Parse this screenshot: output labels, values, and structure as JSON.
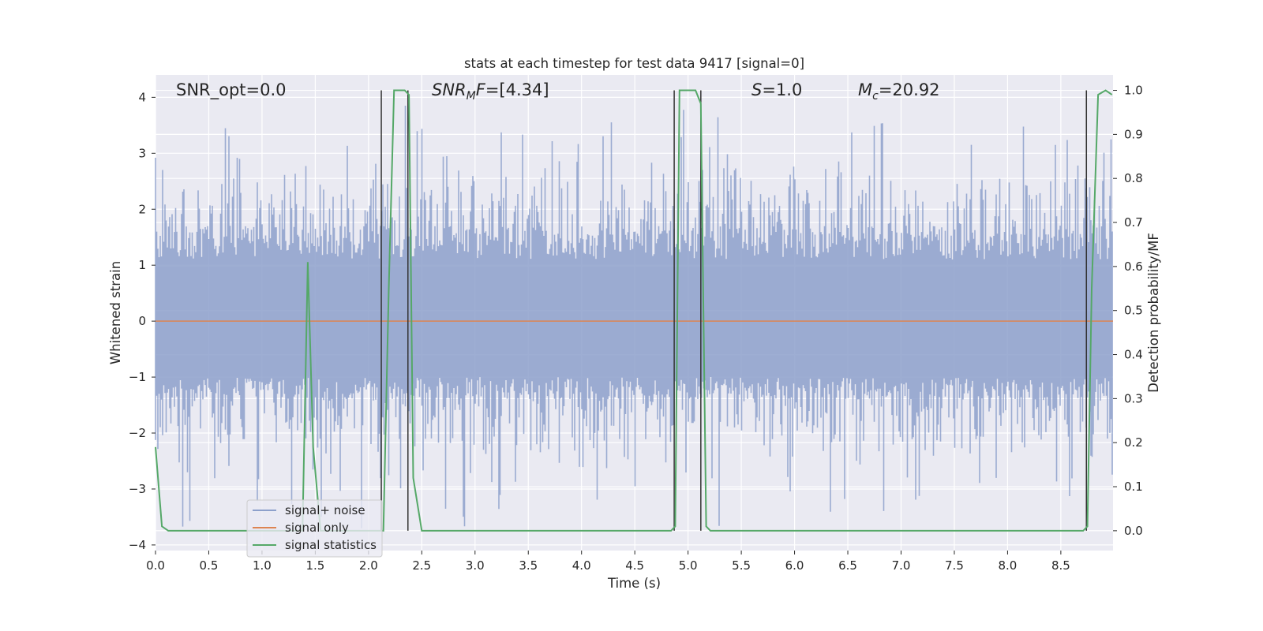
{
  "chart_data": {
    "type": "line",
    "title": "stats at each timestep for test data 9417 [signal=0]",
    "xlabel": "Time (s)",
    "ylabel": "Whitened strain",
    "y2label": "Detection probability/MF",
    "xlim": [
      0.0,
      8.99
    ],
    "ylim": [
      -4.1,
      4.4
    ],
    "y2lim": [
      -0.045,
      1.035
    ],
    "xticks": [
      "0.0",
      "0.5",
      "1.0",
      "1.5",
      "2.0",
      "2.5",
      "3.0",
      "3.5",
      "4.0",
      "4.5",
      "5.0",
      "5.5",
      "6.0",
      "6.5",
      "7.0",
      "7.5",
      "8.0",
      "8.5"
    ],
    "xtick_values": [
      0.0,
      0.5,
      1.0,
      1.5,
      2.0,
      2.5,
      3.0,
      3.5,
      4.0,
      4.5,
      5.0,
      5.5,
      6.0,
      6.5,
      7.0,
      7.5,
      8.0,
      8.5
    ],
    "yticks": [
      "4",
      "3",
      "2",
      "1",
      "0",
      "−1",
      "−2",
      "−3",
      "−4"
    ],
    "ytick_values": [
      4,
      3,
      2,
      1,
      0,
      -1,
      -2,
      -3,
      -4
    ],
    "y2ticks": [
      "1.0",
      "0.9",
      "0.8",
      "0.7",
      "0.6",
      "0.5",
      "0.4",
      "0.3",
      "0.2",
      "0.1",
      "0.0"
    ],
    "y2tick_values": [
      1.0,
      0.9,
      0.8,
      0.7,
      0.6,
      0.5,
      0.4,
      0.3,
      0.2,
      0.1,
      0.0
    ],
    "grid": true,
    "legend_position": "lower-left",
    "annotations": {
      "snr_opt": "SNR_opt=0.0",
      "snr_mf_prefix": "SNR",
      "snr_mf_sub": "M",
      "snr_mf_suffix": "F=[4.34]",
      "s": "S",
      "s_value": "=1.0",
      "mc": "M",
      "mc_sub": "c",
      "mc_value": "=20.92"
    },
    "series": [
      {
        "name": "signal+ noise",
        "color": "#8da0cb",
        "axis": "left",
        "noise_band": {
          "typical_low": -1.4,
          "typical_high": 1.7,
          "max": 4.0,
          "min": -3.7
        }
      },
      {
        "name": "signal only",
        "color": "#dd8452",
        "axis": "left",
        "x": [
          0.0,
          8.99
        ],
        "y": [
          0.0,
          0.0
        ]
      },
      {
        "name": "signal statistics",
        "color": "#55a868",
        "axis": "right",
        "x": [
          0.0,
          0.06,
          0.12,
          0.6,
          1.0,
          1.38,
          1.43,
          1.48,
          1.55,
          2.0,
          2.1,
          2.14,
          2.19,
          2.24,
          2.29,
          2.34,
          2.38,
          2.42,
          2.5,
          4.6,
          4.84,
          4.88,
          4.92,
          4.97,
          5.07,
          5.12,
          5.17,
          5.21,
          5.28,
          8.65,
          8.71,
          8.75,
          8.79,
          8.85,
          8.92,
          8.98
        ],
        "y": [
          0.19,
          0.01,
          0.0,
          0.0,
          0.0,
          0.0,
          0.61,
          0.19,
          0.0,
          0.0,
          0.0,
          0.0,
          0.55,
          1.0,
          1.0,
          1.0,
          0.99,
          0.12,
          0.0,
          0.0,
          0.0,
          0.01,
          1.0,
          1.0,
          1.0,
          0.97,
          0.01,
          0.0,
          0.0,
          0.0,
          0.0,
          0.01,
          0.55,
          0.99,
          1.0,
          0.99
        ]
      }
    ],
    "vertical_markers": [
      2.12,
      2.37,
      4.87,
      5.12,
      8.74
    ],
    "marker_color": "#333333"
  }
}
